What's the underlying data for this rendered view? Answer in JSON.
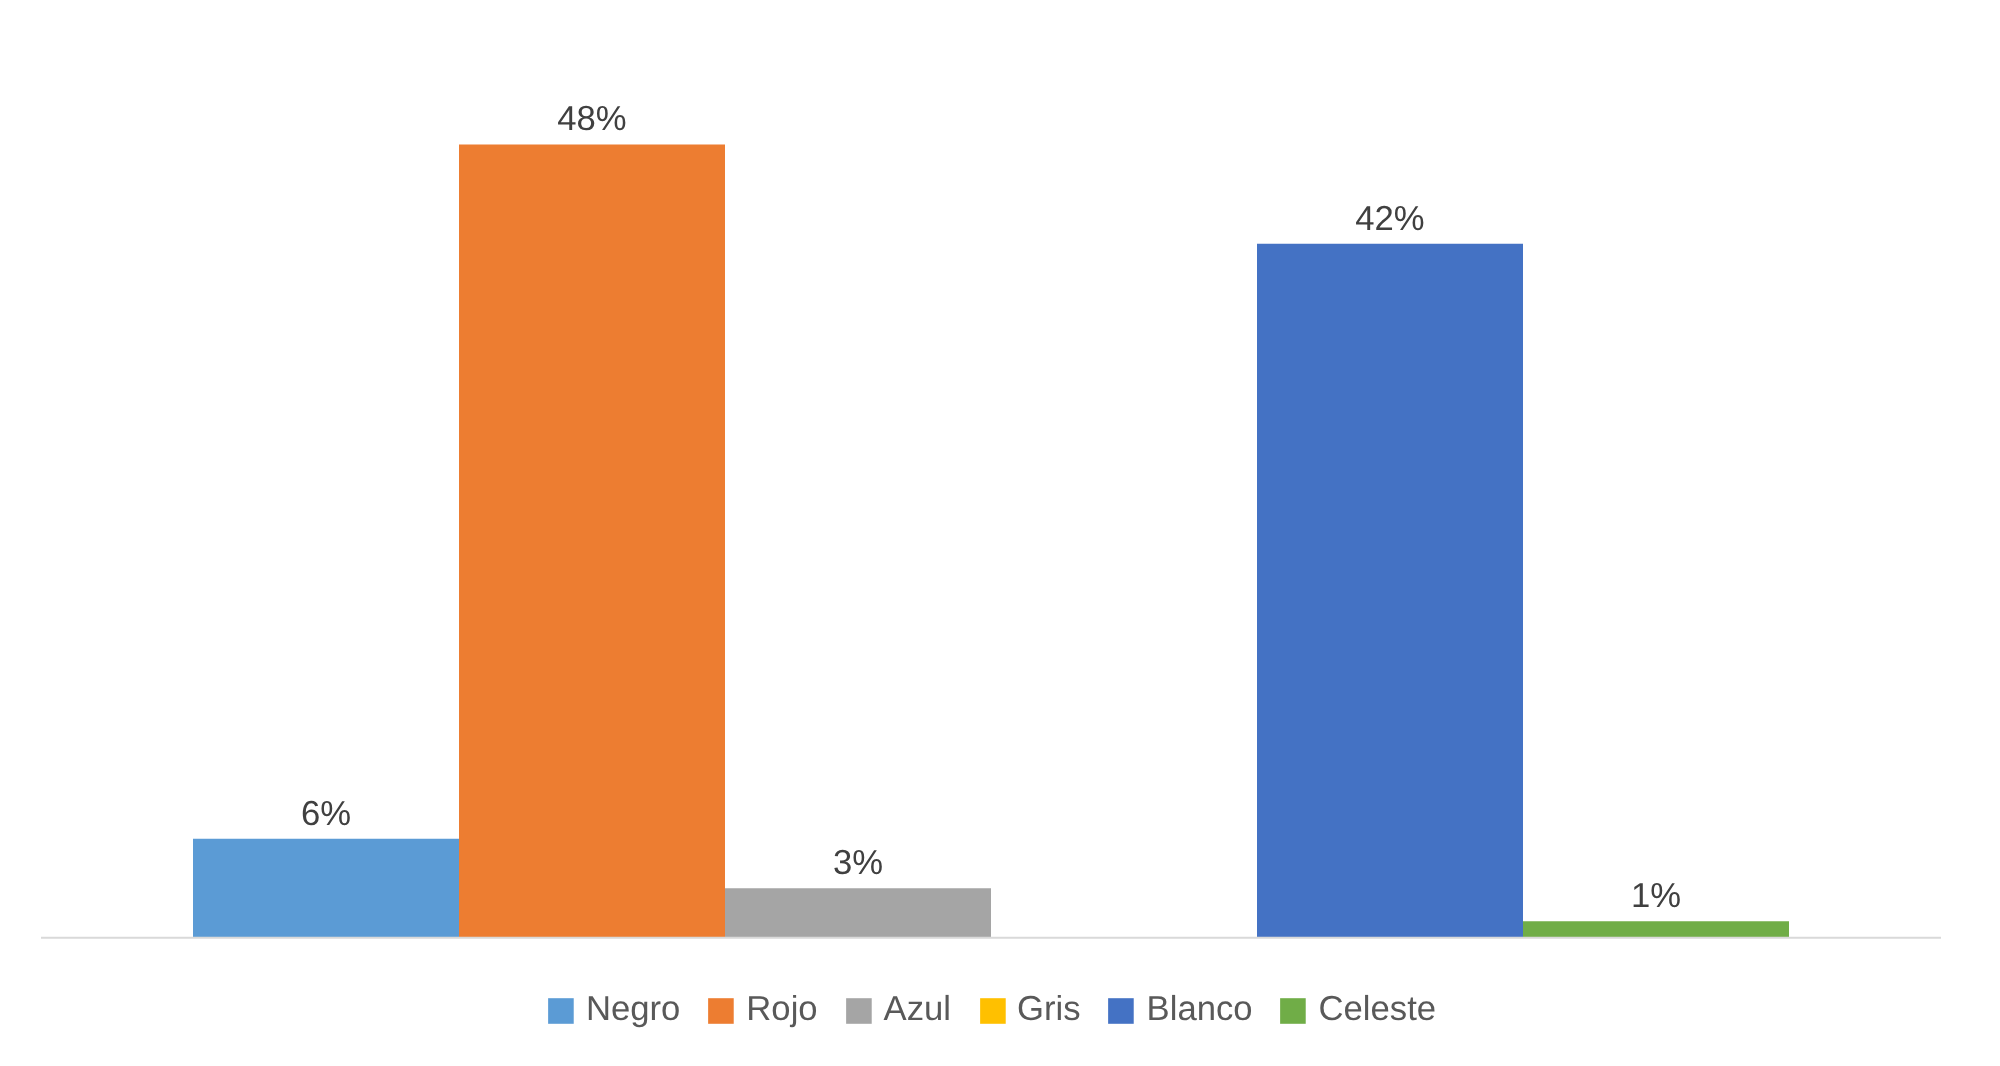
{
  "chart_data": {
    "type": "bar",
    "categories": [
      null
    ],
    "series": [
      {
        "name": "Negro",
        "color": "#5b9bd5",
        "values": [
          6
        ],
        "value_labels": [
          "6%"
        ]
      },
      {
        "name": "Rojo",
        "color": "#ed7d31",
        "values": [
          48
        ],
        "value_labels": [
          "48%"
        ]
      },
      {
        "name": "Azul",
        "color": "#a5a5a5",
        "values": [
          3
        ],
        "value_labels": [
          "3%"
        ]
      },
      {
        "name": "Gris",
        "color": "#ffc000",
        "values": [
          0
        ],
        "value_labels": [
          null
        ]
      },
      {
        "name": "Blanco",
        "color": "#4472c4",
        "values": [
          42
        ],
        "value_labels": [
          "42%"
        ]
      },
      {
        "name": "Celeste",
        "color": "#70ad47",
        "values": [
          1
        ],
        "value_labels": [
          "1%"
        ]
      }
    ],
    "legend": "bottom"
  }
}
